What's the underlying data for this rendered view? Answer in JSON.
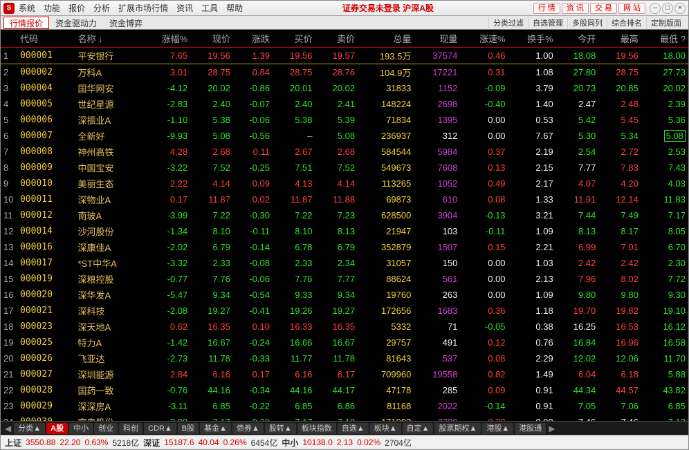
{
  "titlebar": {
    "logo": "S",
    "menus": [
      "系统",
      "功能",
      "报价",
      "分析",
      "扩展市场行情",
      "资讯",
      "工具",
      "帮助"
    ],
    "center": "证券交易未登录  沪深A股",
    "rbtns": [
      "行 情",
      "资 讯",
      "交 易",
      "网 站"
    ],
    "winctrl": [
      "–",
      "□",
      "×"
    ]
  },
  "subbar": {
    "tabs": [
      {
        "label": "行情报价",
        "active": true
      },
      {
        "label": "资金驱动力",
        "active": false
      },
      {
        "label": "资金博弈",
        "active": false
      }
    ],
    "rtabs": [
      "分类过滤",
      "自选管理",
      "多股同列",
      "综合排名",
      "定制版面"
    ]
  },
  "table": {
    "headers": [
      "",
      "代码",
      "名称 ↓",
      "涨幅%",
      "现价",
      "涨跌",
      "买价",
      "卖价",
      "总量",
      "现量",
      "涨速%",
      "换手%",
      "今开",
      "最高",
      "最低 ?"
    ],
    "rows": [
      {
        "n": 1,
        "hl": true,
        "code": "000001",
        "codec": "yellow",
        "name": "平安银行",
        "pct": "7.65",
        "pctc": "red",
        "price": "19.56",
        "pricec": "red",
        "chg": "1.39",
        "chgc": "red",
        "bid": "19.56",
        "bidc": "red",
        "ask": "19.57",
        "askc": "red",
        "vol": "193.5万",
        "volc": "yellow",
        "cur": "37574",
        "curc": "magenta",
        "spd": "0.46",
        "spdc": "red",
        "turn": "1.00",
        "turnc": "white",
        "open": "18.08",
        "openc": "green",
        "high": "19.56",
        "highc": "red",
        "low": "18.00",
        "lowc": "green"
      },
      {
        "n": 2,
        "code": "000002",
        "codec": "yellow",
        "name": "万科A",
        "pct": "3.01",
        "pctc": "red",
        "price": "28.75",
        "pricec": "red",
        "chg": "0.84",
        "chgc": "red",
        "bid": "28.75",
        "bidc": "red",
        "ask": "28.76",
        "askc": "red",
        "vol": "104.9万",
        "volc": "yellow",
        "cur": "17221",
        "curc": "magenta",
        "spd": "0.31",
        "spdc": "red",
        "turn": "1.08",
        "turnc": "white",
        "open": "27.80",
        "openc": "green",
        "high": "28.75",
        "highc": "red",
        "low": "27.73",
        "lowc": "green"
      },
      {
        "n": 3,
        "code": "000004",
        "codec": "yellow",
        "name": "国华网安",
        "pct": "-4.12",
        "pctc": "green",
        "price": "20.02",
        "pricec": "green",
        "chg": "-0.86",
        "chgc": "green",
        "bid": "20.01",
        "bidc": "green",
        "ask": "20.02",
        "askc": "green",
        "vol": "31833",
        "volc": "yellow",
        "cur": "1152",
        "curc": "magenta",
        "spd": "-0.09",
        "spdc": "green",
        "turn": "3.79",
        "turnc": "white",
        "open": "20.73",
        "openc": "green",
        "high": "20.85",
        "highc": "green",
        "low": "20.02",
        "lowc": "green"
      },
      {
        "n": 4,
        "code": "000005",
        "codec": "yellow",
        "name": "世纪星源",
        "pct": "-2.83",
        "pctc": "green",
        "price": "2.40",
        "pricec": "green",
        "chg": "-0.07",
        "chgc": "green",
        "bid": "2.40",
        "bidc": "green",
        "ask": "2.41",
        "askc": "green",
        "vol": "148224",
        "volc": "yellow",
        "cur": "2698",
        "curc": "magenta",
        "spd": "-0.40",
        "spdc": "green",
        "turn": "1.40",
        "turnc": "white",
        "open": "2.47",
        "openc": "white",
        "high": "2.48",
        "highc": "red",
        "low": "2.39",
        "lowc": "green"
      },
      {
        "n": 5,
        "code": "000006",
        "codec": "yellow",
        "name": "深振业A",
        "pct": "-1.10",
        "pctc": "green",
        "price": "5.38",
        "pricec": "green",
        "chg": "-0.06",
        "chgc": "green",
        "bid": "5.38",
        "bidc": "green",
        "ask": "5.39",
        "askc": "green",
        "vol": "71834",
        "volc": "yellow",
        "cur": "1395",
        "curc": "magenta",
        "spd": "0.00",
        "spdc": "white",
        "turn": "0.53",
        "turnc": "white",
        "open": "5.42",
        "openc": "green",
        "high": "5.45",
        "highc": "red",
        "low": "5.36",
        "lowc": "green"
      },
      {
        "n": 6,
        "code": "000007",
        "codec": "yellow",
        "name": "全新好",
        "pct": "-9.93",
        "pctc": "green",
        "price": "5.08",
        "pricec": "green",
        "chg": "-0.56",
        "chgc": "green",
        "bid": "–",
        "bidc": "gray",
        "ask": "5.08",
        "askc": "green",
        "vol": "236937",
        "volc": "yellow",
        "cur": "312",
        "curc": "white",
        "spd": "0.00",
        "spdc": "white",
        "turn": "7.67",
        "turnc": "white",
        "open": "5.30",
        "openc": "green",
        "high": "5.34",
        "highc": "green",
        "low": "5.08",
        "lowc": "boxgreen"
      },
      {
        "n": 7,
        "code": "000008",
        "codec": "yellow",
        "name": "神州高铁",
        "pct": "4.28",
        "pctc": "red",
        "price": "2.68",
        "pricec": "red",
        "chg": "0.11",
        "chgc": "red",
        "bid": "2.67",
        "bidc": "red",
        "ask": "2.68",
        "askc": "red",
        "vol": "584544",
        "volc": "yellow",
        "cur": "5984",
        "curc": "magenta",
        "spd": "0.37",
        "spdc": "red",
        "turn": "2.19",
        "turnc": "white",
        "open": "2.54",
        "openc": "green",
        "high": "2.72",
        "highc": "red",
        "low": "2.53",
        "lowc": "green"
      },
      {
        "n": 8,
        "code": "000009",
        "codec": "yellow",
        "name": "中国宝安",
        "pct": "-3.22",
        "pctc": "green",
        "price": "7.52",
        "pricec": "green",
        "chg": "-0.25",
        "chgc": "green",
        "bid": "7.51",
        "bidc": "green",
        "ask": "7.52",
        "askc": "green",
        "vol": "549673",
        "volc": "yellow",
        "cur": "7608",
        "curc": "magenta",
        "spd": "0.13",
        "spdc": "red",
        "turn": "2.15",
        "turnc": "white",
        "open": "7.77",
        "openc": "white",
        "high": "7.83",
        "highc": "red",
        "low": "7.43",
        "lowc": "green"
      },
      {
        "n": 9,
        "code": "000010",
        "codec": "yellow",
        "name": "美丽生态",
        "pct": "2.22",
        "pctc": "red",
        "price": "4.14",
        "pricec": "red",
        "chg": "0.09",
        "chgc": "red",
        "bid": "4.13",
        "bidc": "red",
        "ask": "4.14",
        "askc": "red",
        "vol": "113265",
        "volc": "yellow",
        "cur": "1052",
        "curc": "magenta",
        "spd": "0.49",
        "spdc": "red",
        "turn": "2.17",
        "turnc": "white",
        "open": "4.07",
        "openc": "red",
        "high": "4.20",
        "highc": "red",
        "low": "4.03",
        "lowc": "green"
      },
      {
        "n": 10,
        "code": "000011",
        "codec": "yellow",
        "name": "深物业A",
        "pct": "0.17",
        "pctc": "red",
        "price": "11.87",
        "pricec": "red",
        "chg": "0.02",
        "chgc": "red",
        "bid": "11.87",
        "bidc": "red",
        "ask": "11.88",
        "askc": "red",
        "vol": "69873",
        "volc": "yellow",
        "cur": "610",
        "curc": "magenta",
        "spd": "0.08",
        "spdc": "red",
        "turn": "1.33",
        "turnc": "white",
        "open": "11.91",
        "openc": "red",
        "high": "12.14",
        "highc": "red",
        "low": "11.83",
        "lowc": "green"
      },
      {
        "n": 11,
        "code": "000012",
        "codec": "yellow",
        "name": "南玻A",
        "pct": "-3.99",
        "pctc": "green",
        "price": "7.22",
        "pricec": "green",
        "chg": "-0.30",
        "chgc": "green",
        "bid": "7.22",
        "bidc": "green",
        "ask": "7.23",
        "askc": "green",
        "vol": "628500",
        "volc": "yellow",
        "cur": "3904",
        "curc": "magenta",
        "spd": "-0.13",
        "spdc": "green",
        "turn": "3.21",
        "turnc": "white",
        "open": "7.44",
        "openc": "green",
        "high": "7.49",
        "highc": "green",
        "low": "7.17",
        "lowc": "green"
      },
      {
        "n": 12,
        "code": "000014",
        "codec": "yellow",
        "name": "沙河股份",
        "pct": "-1.34",
        "pctc": "green",
        "price": "8.10",
        "pricec": "green",
        "chg": "-0.11",
        "chgc": "green",
        "bid": "8.10",
        "bidc": "green",
        "ask": "8.13",
        "askc": "green",
        "vol": "21947",
        "volc": "yellow",
        "cur": "103",
        "curc": "white",
        "spd": "-0.11",
        "spdc": "green",
        "turn": "1.09",
        "turnc": "white",
        "open": "8.13",
        "openc": "green",
        "high": "8.17",
        "highc": "green",
        "low": "8.05",
        "lowc": "green"
      },
      {
        "n": 13,
        "code": "000016",
        "codec": "yellow",
        "name": "深康佳A",
        "pct": "-2.02",
        "pctc": "green",
        "price": "6.79",
        "pricec": "green",
        "chg": "-0.14",
        "chgc": "green",
        "bid": "6.78",
        "bidc": "green",
        "ask": "6.79",
        "askc": "green",
        "vol": "352879",
        "volc": "yellow",
        "cur": "1507",
        "curc": "magenta",
        "spd": "0.15",
        "spdc": "red",
        "turn": "2.21",
        "turnc": "white",
        "open": "6.99",
        "openc": "red",
        "high": "7.01",
        "highc": "red",
        "low": "6.70",
        "lowc": "green"
      },
      {
        "n": 14,
        "code": "000017",
        "codec": "yellow",
        "name": "*ST中华A",
        "pct": "-3.32",
        "pctc": "green",
        "price": "2.33",
        "pricec": "green",
        "chg": "-0.08",
        "chgc": "green",
        "bid": "2.33",
        "bidc": "green",
        "ask": "2.34",
        "askc": "green",
        "vol": "31057",
        "volc": "yellow",
        "cur": "150",
        "curc": "white",
        "spd": "0.00",
        "spdc": "white",
        "turn": "1.03",
        "turnc": "white",
        "open": "2.42",
        "openc": "red",
        "high": "2.42",
        "highc": "red",
        "low": "2.30",
        "lowc": "green"
      },
      {
        "n": 15,
        "code": "000019",
        "codec": "yellow",
        "name": "深粮控股",
        "pct": "-0.77",
        "pctc": "green",
        "price": "7.76",
        "pricec": "green",
        "chg": "-0.06",
        "chgc": "green",
        "bid": "7.76",
        "bidc": "green",
        "ask": "7.77",
        "askc": "green",
        "vol": "88624",
        "volc": "yellow",
        "cur": "561",
        "curc": "magenta",
        "spd": "0.00",
        "spdc": "white",
        "turn": "2.13",
        "turnc": "white",
        "open": "7.96",
        "openc": "red",
        "high": "8.02",
        "highc": "red",
        "low": "7.72",
        "lowc": "green"
      },
      {
        "n": 16,
        "code": "000020",
        "codec": "yellow",
        "name": "深华发A",
        "pct": "-5.47",
        "pctc": "green",
        "price": "9.34",
        "pricec": "green",
        "chg": "-0.54",
        "chgc": "green",
        "bid": "9.33",
        "bidc": "green",
        "ask": "9.34",
        "askc": "green",
        "vol": "19760",
        "volc": "yellow",
        "cur": "263",
        "curc": "white",
        "spd": "0.00",
        "spdc": "white",
        "turn": "1.09",
        "turnc": "white",
        "open": "9.80",
        "openc": "green",
        "high": "9.80",
        "highc": "green",
        "low": "9.30",
        "lowc": "green"
      },
      {
        "n": 17,
        "code": "000021",
        "codec": "yellow",
        "name": "深科技",
        "pct": "-2.08",
        "pctc": "green",
        "price": "19.27",
        "pricec": "green",
        "chg": "-0.41",
        "chgc": "green",
        "bid": "19.26",
        "bidc": "green",
        "ask": "19.27",
        "askc": "green",
        "vol": "172656",
        "volc": "yellow",
        "cur": "1683",
        "curc": "magenta",
        "spd": "0.36",
        "spdc": "red",
        "turn": "1.18",
        "turnc": "white",
        "open": "19.70",
        "openc": "red",
        "high": "19.82",
        "highc": "red",
        "low": "19.10",
        "lowc": "green"
      },
      {
        "n": 18,
        "code": "000023",
        "codec": "yellow",
        "name": "深天地A",
        "pct": "0.62",
        "pctc": "red",
        "price": "16.35",
        "pricec": "red",
        "chg": "0.10",
        "chgc": "red",
        "bid": "16.33",
        "bidc": "red",
        "ask": "16.35",
        "askc": "red",
        "vol": "5332",
        "volc": "yellow",
        "cur": "71",
        "curc": "white",
        "spd": "-0.05",
        "spdc": "green",
        "turn": "0.38",
        "turnc": "white",
        "open": "16.25",
        "openc": "white",
        "high": "16.53",
        "highc": "red",
        "low": "16.12",
        "lowc": "green"
      },
      {
        "n": 19,
        "code": "000025",
        "codec": "yellow",
        "name": "特力A",
        "pct": "-1.42",
        "pctc": "green",
        "price": "16.67",
        "pricec": "green",
        "chg": "-0.24",
        "chgc": "green",
        "bid": "16.66",
        "bidc": "green",
        "ask": "16.67",
        "askc": "green",
        "vol": "29757",
        "volc": "yellow",
        "cur": "491",
        "curc": "white",
        "spd": "0.12",
        "spdc": "red",
        "turn": "0.76",
        "turnc": "white",
        "open": "16.84",
        "openc": "green",
        "high": "16.96",
        "highc": "red",
        "low": "16.58",
        "lowc": "green"
      },
      {
        "n": 20,
        "code": "000026",
        "codec": "yellow",
        "name": "飞亚达",
        "pct": "-2.73",
        "pctc": "green",
        "price": "11.78",
        "pricec": "green",
        "chg": "-0.33",
        "chgc": "green",
        "bid": "11.77",
        "bidc": "green",
        "ask": "11.78",
        "askc": "green",
        "vol": "81643",
        "volc": "yellow",
        "cur": "537",
        "curc": "magenta",
        "spd": "0.08",
        "spdc": "red",
        "turn": "2.29",
        "turnc": "white",
        "open": "12.02",
        "openc": "green",
        "high": "12.06",
        "highc": "green",
        "low": "11.70",
        "lowc": "green"
      },
      {
        "n": 21,
        "code": "000027",
        "codec": "yellow",
        "name": "深圳能源",
        "pct": "2.84",
        "pctc": "red",
        "price": "6.16",
        "pricec": "red",
        "chg": "0.17",
        "chgc": "red",
        "bid": "6.16",
        "bidc": "red",
        "ask": "6.17",
        "askc": "red",
        "vol": "709960",
        "volc": "yellow",
        "cur": "19558",
        "curc": "magenta",
        "spd": "0.82",
        "spdc": "red",
        "turn": "1.49",
        "turnc": "white",
        "open": "6.04",
        "openc": "red",
        "high": "6.18",
        "highc": "red",
        "low": "5.88",
        "lowc": "green"
      },
      {
        "n": 22,
        "code": "000028",
        "codec": "yellow",
        "name": "国药一致",
        "pct": "-0.76",
        "pctc": "green",
        "price": "44.16",
        "pricec": "green",
        "chg": "-0.34",
        "chgc": "green",
        "bid": "44.16",
        "bidc": "green",
        "ask": "44.17",
        "askc": "green",
        "vol": "47178",
        "volc": "yellow",
        "cur": "285",
        "curc": "white",
        "spd": "0.09",
        "spdc": "red",
        "turn": "0.91",
        "turnc": "white",
        "open": "44.34",
        "openc": "green",
        "high": "44.57",
        "highc": "red",
        "low": "43.82",
        "lowc": "green"
      },
      {
        "n": 23,
        "code": "000029",
        "codec": "yellow",
        "name": "深深房A",
        "pct": "-3.11",
        "pctc": "green",
        "price": "6.85",
        "pricec": "green",
        "chg": "-0.22",
        "chgc": "green",
        "bid": "6.85",
        "bidc": "green",
        "ask": "6.86",
        "askc": "green",
        "vol": "81168",
        "volc": "yellow",
        "cur": "2022",
        "curc": "magenta",
        "spd": "-0.14",
        "spdc": "green",
        "turn": "0.91",
        "turnc": "white",
        "open": "7.05",
        "openc": "green",
        "high": "7.06",
        "highc": "green",
        "low": "6.85",
        "lowc": "green"
      },
      {
        "n": 24,
        "code": "000030",
        "codec": "yellow",
        "name": "富奥股份",
        "pct": "-3.88",
        "pctc": "green",
        "price": "7.17",
        "pricec": "green",
        "chg": "-0.29",
        "chgc": "green",
        "bid": "7.17",
        "bidc": "green",
        "ask": "7.18",
        "askc": "green",
        "vol": "171982",
        "volc": "yellow",
        "cur": "2700",
        "curc": "magenta",
        "spd": "0.28",
        "spdc": "red",
        "turn": "0.98",
        "turnc": "white",
        "open": "7.46",
        "openc": "white",
        "high": "7.46",
        "highc": "white",
        "low": "7.13",
        "lowc": "green"
      }
    ]
  },
  "bottombar": {
    "tabs": [
      {
        "label": "分类▲",
        "active": false
      },
      {
        "label": "A股",
        "active": true
      },
      {
        "label": "中小",
        "active": false
      },
      {
        "label": "创业",
        "active": false
      },
      {
        "label": "科创",
        "active": false
      },
      {
        "label": "CDR▲",
        "active": false
      },
      {
        "label": "B股",
        "active": false
      },
      {
        "label": "基金▲",
        "active": false
      },
      {
        "label": "债券▲",
        "active": false
      },
      {
        "label": "股转▲",
        "active": false
      },
      {
        "label": "板块指数",
        "active": false
      },
      {
        "label": "自选▲",
        "active": false
      },
      {
        "label": "板块▲",
        "active": false
      },
      {
        "label": "自定▲",
        "active": false
      },
      {
        "label": "股票期权▲",
        "active": false
      },
      {
        "label": "港股▲",
        "active": false
      },
      {
        "label": "港股通",
        "active": false
      }
    ]
  },
  "statusbar": {
    "items": [
      {
        "label": "上证",
        "labelc": "idx",
        "val": "3550.88",
        "valc": "sred",
        "chg": "22.20",
        "chgc": "sred",
        "pct": "0.63%",
        "pctc": "sred",
        "vol": "5218亿"
      },
      {
        "label": "深证",
        "labelc": "idx",
        "val": "15187.6",
        "valc": "sred",
        "chg": "40.04",
        "chgc": "sred",
        "pct": "0.26%",
        "pctc": "sred",
        "vol": "6454亿"
      },
      {
        "label": "中小",
        "labelc": "idx",
        "val": "10138.0",
        "valc": "sred",
        "chg": "2.13",
        "chgc": "sred",
        "pct": "0.02%",
        "pctc": "sred",
        "vol": "2704亿"
      }
    ]
  }
}
